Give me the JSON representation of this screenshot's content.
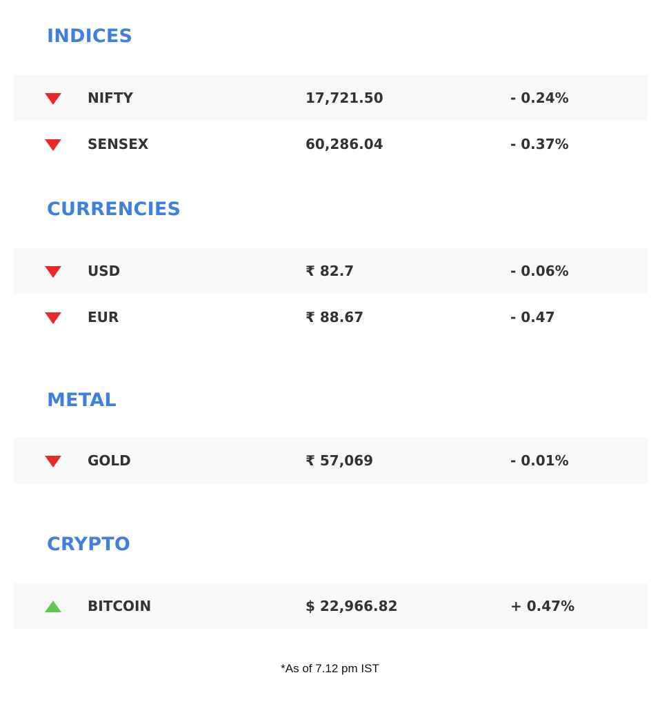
{
  "sections": [
    {
      "title": "INDICES",
      "rows": [
        {
          "name": "NIFTY",
          "value": "17,721.50",
          "change": "- 0.24%",
          "direction": "down"
        },
        {
          "name": "SENSEX",
          "value": "60,286.04",
          "change": "- 0.37%",
          "direction": "down"
        }
      ]
    },
    {
      "title": "CURRENCIES",
      "rows": [
        {
          "name": "USD",
          "value": "₹ 82.7",
          "change": "- 0.06%",
          "direction": "down"
        },
        {
          "name": "EUR",
          "value": "₹ 88.67",
          "change": "- 0.47",
          "direction": "down"
        }
      ]
    },
    {
      "title": "METAL",
      "rows": [
        {
          "name": "GOLD",
          "value": "₹ 57,069",
          "change": "- 0.01%",
          "direction": "down"
        }
      ]
    },
    {
      "title": "CRYPTO",
      "rows": [
        {
          "name": "BITCOIN",
          "value": "$ 22,966.82",
          "change": "+ 0.47%",
          "direction": "up"
        }
      ]
    }
  ],
  "footnote": "*As of 7.12 pm IST",
  "colors": {
    "heading": "#3f80de",
    "down": "#e8282b",
    "up": "#5ec94c",
    "text": "#333333",
    "row_shade": "#f8f8f8"
  },
  "icons": {
    "down": "triangle-down-icon",
    "up": "triangle-up-icon"
  }
}
